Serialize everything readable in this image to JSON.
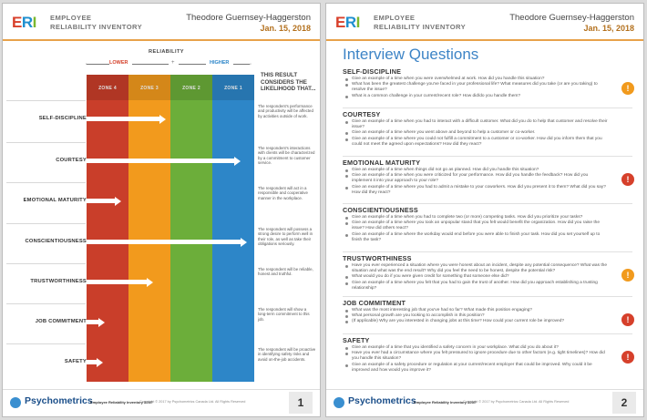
{
  "header": {
    "logo": "ERI",
    "title_line1": "EMPLOYEE",
    "title_line2": "RELIABILITY INVENTORY",
    "candidate": "Theodore Guernsey-Haggerston",
    "date": "Jan. 15, 2018"
  },
  "footer": {
    "brand": "Psychometrics",
    "report": "Employee Reliability Inventory 300®",
    "copyright": "Copyright © 2017 by Psychometrics Canada Ltd. All Rights Reserved",
    "page1": "1",
    "page2": "2"
  },
  "colors": {
    "zone4": "#c93e2a",
    "zone3": "#f29a1d",
    "zone2": "#6cae3a",
    "zone1": "#2d86c8",
    "accent": "#e8a24a"
  },
  "page1": {
    "reliability": "RELIABILITY",
    "lower": "LOWER",
    "higher": "HIGHER",
    "considers": "THIS RESULT CONSIDERS THE LIKELIHOOD THAT...",
    "zones": [
      "ZONE 4",
      "ZONE 3",
      "ZONE 2",
      "ZONE 1"
    ],
    "traits": [
      {
        "name": "SELF-DISCIPLINE",
        "zone_value": 1.75,
        "desc": "The respondent's performance and productivity will be affected by activities outside of work."
      },
      {
        "name": "COURTESY",
        "zone_value": 3.55,
        "desc": "The respondent's interactions with clients will be characterized by a commitment to customer service."
      },
      {
        "name": "EMOTIONAL MATURITY",
        "zone_value": 0.7,
        "desc": "The respondent will act in a responsible and cooperative manner in the workplace."
      },
      {
        "name": "CONSCIENTIOUSNESS",
        "zone_value": 3.7,
        "desc": "The respondent will possess a strong desire to perform well in their role, as well as take their obligations seriously."
      },
      {
        "name": "TRUSTWORTHINESS",
        "zone_value": 1.45,
        "desc": "The respondent will be reliable, honest and truthful."
      },
      {
        "name": "JOB COMMITMENT",
        "zone_value": 0.3,
        "desc": "The respondent will show a long-term commitment to this job."
      },
      {
        "name": "SAFETY",
        "zone_value": 0.25,
        "desc": "The respondent will be proactive in identifying safety risks and avoid on-the-job accidents."
      }
    ]
  },
  "page2": {
    "title": "Interview Questions",
    "sections": [
      {
        "name": "SELF-DISCIPLINE",
        "flag": "!",
        "flag_color": "#f19a1d",
        "questions": [
          "Give an example of a time when you were overwhelmed at work. How did you handle this situation?",
          "What has been the greatest challenge you've faced in your professional life? What measures did you take (or are you taking) to resolve the issue?",
          "What is a common challenge in your current/recent role? How did/do you handle them?"
        ]
      },
      {
        "name": "COURTESY",
        "flag": "",
        "flag_color": "",
        "questions": [
          "Give an example of a time when you had to interact with a difficult customer. What did you do to help that customer and resolve their issue?",
          "Give an example of a time where you went above and beyond to help a customer or co-worker.",
          "Give an example of a time where you could not fulfill a commitment to a customer or co-worker. How did you inform them that you could not meet the agreed upon expectations? How did they react?"
        ]
      },
      {
        "name": "EMOTIONAL MATURITY",
        "flag": "!",
        "flag_color": "#d6402b",
        "questions": [
          "Give an example of a time when things did not go as planned. How did you handle this situation?",
          "Give an example of a time when you were criticized for your performance. How did you handle the feedback? How did you implement it into your approach to your role?",
          "Give an example of a time where you had to admit a mistake to your coworkers. How did you present it to them? What did you say? How did they react?"
        ]
      },
      {
        "name": "CONSCIENTIOUSNESS",
        "flag": "",
        "flag_color": "",
        "questions": [
          "Give an example of a time when you had to complete two (or more) competing tasks. How did you prioritize your tasks?",
          "Give an example of a time where you took an unpopular stand that you felt would benefit the organization. How did you raise the issue? How did others react?",
          "Give an example of a time where the workday would end before you were able to finish your task. How did you set yourself up to finish the task?"
        ]
      },
      {
        "name": "TRUSTWORTHINESS",
        "flag": "!",
        "flag_color": "#f19a1d",
        "questions": [
          "Have you ever experienced a situation where you were honest about an incident, despite any potential consequence? What was the situation and what was the end result? Why did you feel the need to be honest, despite the potential risk?",
          "What would you do if you were given credit for something that someone else did?",
          "Give an example of a time where you felt that you had to gain the trust of another. How did you approach establishing a trusting relationship?"
        ]
      },
      {
        "name": "JOB COMMITMENT",
        "flag": "!",
        "flag_color": "#d6402b",
        "questions": [
          "What was the most interesting job that you've had so far? What made this position engaging?",
          "What personal growth are you looking to accomplish in this position?",
          "(If applicable) Why are you interested in changing jobs at this time? How could your current role be improved?"
        ]
      },
      {
        "name": "SAFETY",
        "flag": "!",
        "flag_color": "#d6402b",
        "questions": [
          "Give an example of a time that you identified a safety concern in your workplace. What did you do about it?",
          "Have you ever had a circumstance where you felt pressured to ignore procedure due to other factors (e.g. tight timelines)? How did you handle this situation?",
          "Give an example of a safety procedure or regulation at your current/recent employer that could be improved. Why could it be improved and how would you improve it?"
        ]
      }
    ]
  }
}
